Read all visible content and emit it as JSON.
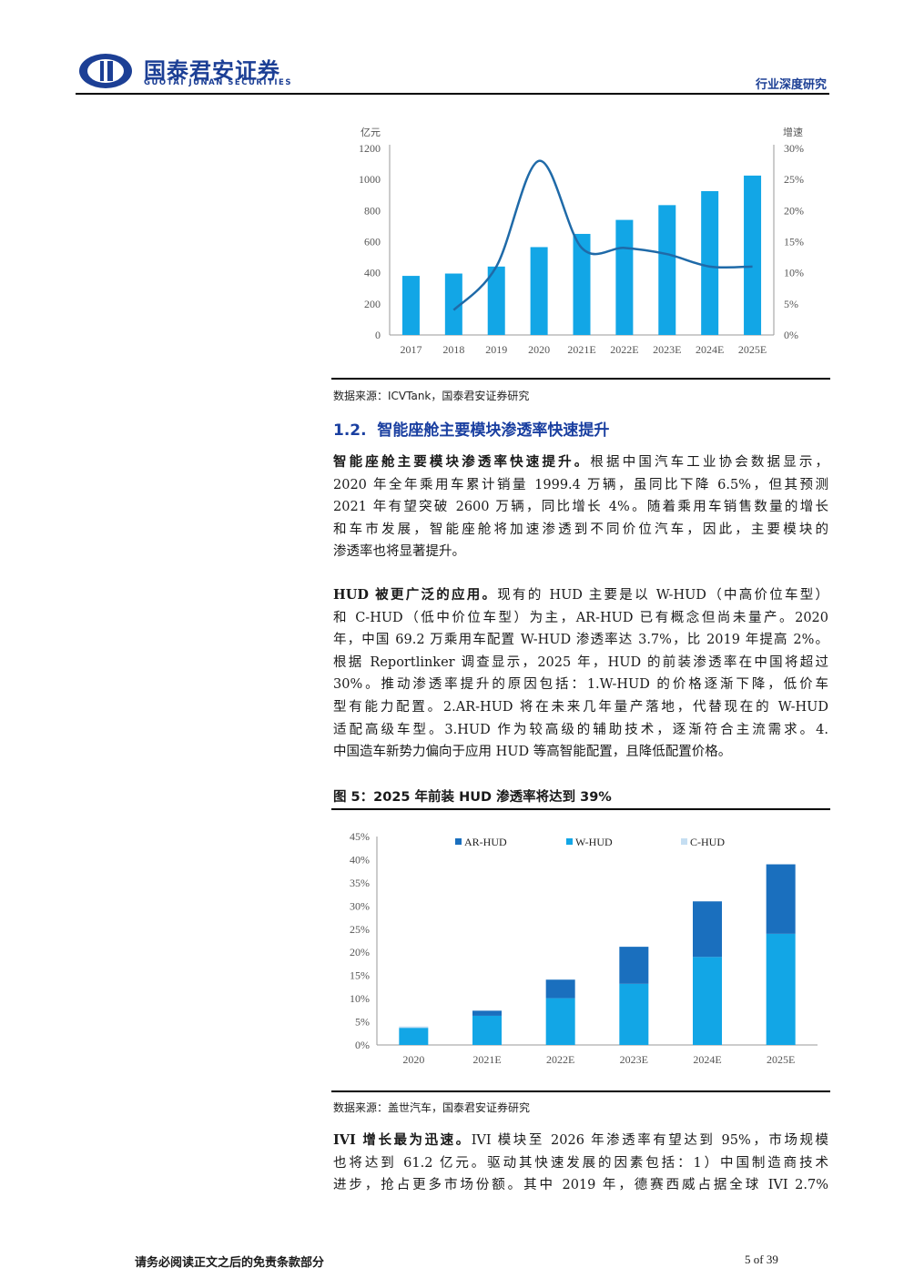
{
  "header": {
    "logo_cn": "国泰君安证券",
    "logo_en": "GUOTAI JUNAN SECURITIES",
    "report_type": "行业深度研究",
    "brand_color": "#1c3f95"
  },
  "chart_data": [
    {
      "type": "bar",
      "categories": [
        "2017",
        "2018",
        "2019",
        "2020",
        "2021E",
        "2022E",
        "2023E",
        "2024E",
        "2025E"
      ],
      "series": [
        {
          "values": [
            380,
            395,
            440,
            565,
            650,
            740,
            835,
            925,
            1025
          ],
          "axis": "left",
          "color": "#12a6e6"
        },
        {
          "type": "line",
          "values": [
            null,
            0.04,
            0.11,
            0.28,
            0.14,
            0.14,
            0.13,
            0.11,
            0.11
          ],
          "axis": "right",
          "color": "#1f6aa8"
        }
      ],
      "ylabel": "亿元",
      "y2label": "增速",
      "ylim": [
        0,
        1200
      ],
      "yticks": [
        "0",
        "200",
        "400",
        "600",
        "800",
        "1000",
        "1200"
      ],
      "y2lim": [
        0,
        0.3
      ],
      "y2ticks": [
        "0%",
        "5%",
        "10%",
        "15%",
        "20%",
        "25%",
        "30%"
      ],
      "grid": false,
      "legend": "none"
    },
    {
      "type": "bar",
      "stacked": true,
      "title": "图 5：2025 年前装 HUD 渗透率将达到 39%",
      "categories": [
        "2020",
        "2021E",
        "2022E",
        "2023E",
        "2024E",
        "2025E"
      ],
      "series": [
        {
          "name": "W-HUD",
          "values": [
            3.7,
            6.3,
            10.1,
            13.2,
            19.0,
            24.0
          ],
          "color": "#12a6e6"
        },
        {
          "name": "AR-HUD",
          "values": [
            0,
            1.1,
            4.0,
            8.0,
            12.0,
            15.0
          ],
          "color": "#1a6fbe"
        },
        {
          "name": "C-HUD",
          "values": [
            0.3,
            0,
            0,
            0,
            0,
            0
          ],
          "color": "#c5def2"
        }
      ],
      "legend_order": [
        "AR-HUD",
        "W-HUD",
        "C-HUD"
      ],
      "ylim": [
        0,
        45
      ],
      "yticks": [
        "0%",
        "5%",
        "10%",
        "15%",
        "20%",
        "25%",
        "30%",
        "35%",
        "40%",
        "45%"
      ],
      "grid": false,
      "legend": "top"
    }
  ],
  "sources": {
    "chart1": "数据来源：ICVTank，国泰君安证券研究",
    "chart2": "数据来源：盖世汽车，国泰君安证券研究"
  },
  "section": {
    "number": "1.2.",
    "title": "智能座舱主要模块渗透率快速提升"
  },
  "para1": {
    "lead": "智能座舱主要模块渗透率快速提升。",
    "lines": [
      "根据中国汽车工业协会数据显示，",
      "2020 年全年乘用车累计销量 1999.4 万辆，虽同比下降 6.5%，但其预测",
      "2021 年有望突破 2600 万辆，同比增长 4%。随着乘用车销售数量的增长",
      "和车市发展，智能座舱将加速渗透到不同价位汽车，因此，主要模块的",
      "渗透率也将显著提升。"
    ]
  },
  "para2": {
    "lead": "HUD 被更广泛的应用。",
    "lines": [
      "现有的 HUD 主要是以 W-HUD（中高价位车型）",
      "和 C-HUD（低中价位车型）为主，AR-HUD 已有概念但尚未量产。2020",
      "年，中国 69.2 万乘用车配置 W-HUD 渗透率达 3.7%，比 2019 年提高 2%。",
      "根据 Reportlinker 调查显示，2025 年，HUD 的前装渗透率在中国将超过",
      "30%。推动渗透率提升的原因包括：1.W-HUD 的价格逐渐下降，低价车",
      "型有能力配置。2.AR-HUD 将在未来几年量产落地，代替现在的 W-HUD",
      "适配高级车型。3.HUD 作为较高级的辅助技术，逐渐符合主流需求。4.",
      "中国造车新势力偏向于应用 HUD 等高智能配置，且降低配置价格。"
    ]
  },
  "para3": {
    "lead": "IVI 增长最为迅速。",
    "lines": [
      "IVI 模块至 2026 年渗透率有望达到 95%，市场规模",
      "也将达到 61.2 亿元。驱动其快速发展的因素包括：1）中国制造商技术",
      "进步，抢占更多市场份额。其中 2019 年，德赛西威占据全球 IVI 2.7%"
    ]
  },
  "footer": {
    "disclaimer": "请务必阅读正文之后的免责条款部分",
    "page": "5 of 39"
  }
}
